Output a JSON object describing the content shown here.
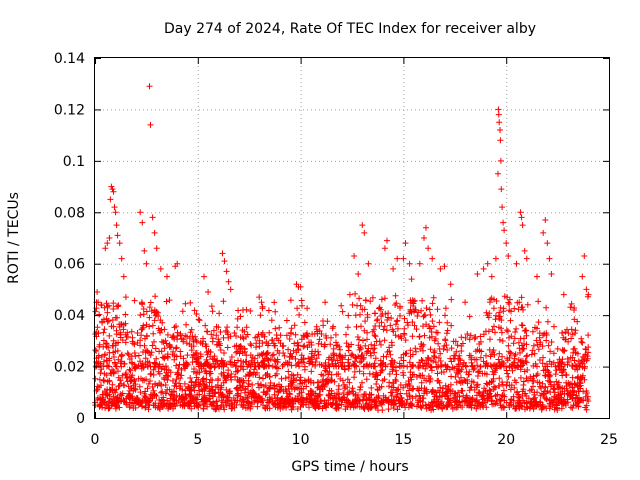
{
  "chart_data": {
    "type": "scatter",
    "title": "Day 274 of 2024, Rate Of TEC Index for receiver alby",
    "xlabel": "GPS time / hours",
    "ylabel": "ROTI / TECUs",
    "xlim": [
      0,
      25
    ],
    "ylim": [
      0,
      0.14
    ],
    "xticks": [
      "0",
      "5",
      "10",
      "15",
      "20",
      "25"
    ],
    "yticks": [
      "0",
      "0.02",
      "0.04",
      "0.06",
      "0.08",
      "0.1",
      "0.12",
      "0.14"
    ],
    "grid": true,
    "marker": "+",
    "series": [
      {
        "name": "ROTI",
        "color": "#ff0000",
        "points": [
          [
            0.1,
            0.049
          ],
          [
            0.15,
            0.045
          ],
          [
            0.3,
            0.044
          ],
          [
            0.5,
            0.066
          ],
          [
            0.6,
            0.068
          ],
          [
            0.7,
            0.07
          ],
          [
            0.75,
            0.085
          ],
          [
            0.8,
            0.09
          ],
          [
            0.85,
            0.089
          ],
          [
            0.9,
            0.088
          ],
          [
            0.95,
            0.082
          ],
          [
            1.0,
            0.08
          ],
          [
            1.05,
            0.075
          ],
          [
            1.1,
            0.071
          ],
          [
            1.2,
            0.068
          ],
          [
            1.3,
            0.062
          ],
          [
            1.4,
            0.055
          ],
          [
            2.2,
            0.08
          ],
          [
            2.3,
            0.076
          ],
          [
            2.4,
            0.065
          ],
          [
            2.5,
            0.06
          ],
          [
            2.65,
            0.129
          ],
          [
            2.7,
            0.114
          ],
          [
            2.8,
            0.078
          ],
          [
            2.9,
            0.072
          ],
          [
            3.0,
            0.066
          ],
          [
            3.2,
            0.058
          ],
          [
            3.5,
            0.055
          ],
          [
            3.9,
            0.059
          ],
          [
            4.0,
            0.06
          ],
          [
            5.3,
            0.055
          ],
          [
            5.5,
            0.049
          ],
          [
            6.2,
            0.064
          ],
          [
            6.3,
            0.061
          ],
          [
            6.4,
            0.057
          ],
          [
            6.5,
            0.053
          ],
          [
            6.6,
            0.05
          ],
          [
            7.2,
            0.042
          ],
          [
            8.1,
            0.045
          ],
          [
            8.6,
            0.038
          ],
          [
            9.8,
            0.052
          ],
          [
            9.9,
            0.051
          ],
          [
            10.0,
            0.051
          ],
          [
            11.1,
            0.036
          ],
          [
            12.4,
            0.048
          ],
          [
            12.6,
            0.063
          ],
          [
            12.8,
            0.056
          ],
          [
            13.0,
            0.075
          ],
          [
            13.1,
            0.072
          ],
          [
            13.3,
            0.06
          ],
          [
            14.1,
            0.066
          ],
          [
            14.2,
            0.069
          ],
          [
            14.5,
            0.058
          ],
          [
            14.7,
            0.062
          ],
          [
            15.0,
            0.062
          ],
          [
            15.1,
            0.068
          ],
          [
            15.3,
            0.06
          ],
          [
            15.4,
            0.054
          ],
          [
            15.8,
            0.06
          ],
          [
            16.0,
            0.07
          ],
          [
            16.1,
            0.074
          ],
          [
            16.2,
            0.066
          ],
          [
            16.4,
            0.062
          ],
          [
            16.8,
            0.058
          ],
          [
            17.0,
            0.059
          ],
          [
            17.3,
            0.052
          ],
          [
            18.0,
            0.045
          ],
          [
            18.6,
            0.056
          ],
          [
            18.9,
            0.058
          ],
          [
            19.1,
            0.06
          ],
          [
            19.3,
            0.055
          ],
          [
            19.5,
            0.062
          ],
          [
            19.6,
            0.095
          ],
          [
            19.62,
            0.12
          ],
          [
            19.64,
            0.118
          ],
          [
            19.66,
            0.115
          ],
          [
            19.7,
            0.112
          ],
          [
            19.72,
            0.108
          ],
          [
            19.74,
            0.1
          ],
          [
            19.76,
            0.089
          ],
          [
            19.8,
            0.082
          ],
          [
            19.85,
            0.076
          ],
          [
            19.9,
            0.073
          ],
          [
            20.0,
            0.068
          ],
          [
            20.1,
            0.063
          ],
          [
            20.5,
            0.06
          ],
          [
            20.7,
            0.08
          ],
          [
            20.75,
            0.078
          ],
          [
            20.8,
            0.075
          ],
          [
            20.9,
            0.065
          ],
          [
            21.0,
            0.062
          ],
          [
            21.5,
            0.055
          ],
          [
            21.8,
            0.072
          ],
          [
            21.9,
            0.077
          ],
          [
            22.0,
            0.068
          ],
          [
            22.1,
            0.062
          ],
          [
            22.2,
            0.056
          ],
          [
            22.8,
            0.048
          ],
          [
            23.3,
            0.042
          ],
          [
            23.7,
            0.055
          ],
          [
            23.8,
            0.063
          ],
          [
            23.9,
            0.05
          ],
          [
            24.0,
            0.048
          ]
        ]
      }
    ],
    "dense_band": {
      "description": "continuous cloud of points across the full time range",
      "x_range": [
        0,
        24
      ],
      "base_level": 0.012,
      "seed": 274
    }
  }
}
